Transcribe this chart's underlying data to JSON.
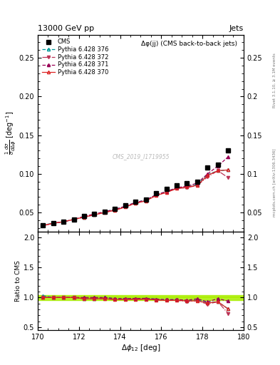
{
  "title_left": "13000 GeV pp",
  "title_right": "Jets",
  "plot_title": "Δφ(jj) (CMS back-to-back jets)",
  "ylabel_main": "$\\frac{1}{\\sigma}\\frac{d\\sigma}{d\\Delta\\phi}$ [deg$^{-1}$]",
  "ylabel_ratio": "Ratio to CMS",
  "xlabel": "$\\Delta\\phi_{12}$ [deg]",
  "right_label": "mcplots.cern.ch [arXiv:1306.3436]",
  "right_label2": "Rivet 3.1.10, ≥ 3.1M events",
  "watermark": "CMS_2019_I1719955",
  "xlim": [
    170,
    180
  ],
  "ylim_main": [
    0.025,
    0.28
  ],
  "ylim_ratio": [
    0.45,
    2.1
  ],
  "yticks_main": [
    0.05,
    0.1,
    0.15,
    0.2,
    0.25
  ],
  "yticks_ratio": [
    0.5,
    1.0,
    1.5,
    2.0
  ],
  "cms_x": [
    170.25,
    170.75,
    171.25,
    171.75,
    172.25,
    172.75,
    173.25,
    173.75,
    174.25,
    174.75,
    175.25,
    175.75,
    176.25,
    176.75,
    177.25,
    177.75,
    178.25,
    178.75,
    179.25
  ],
  "cms_y": [
    0.033,
    0.036,
    0.038,
    0.041,
    0.045,
    0.048,
    0.051,
    0.055,
    0.059,
    0.064,
    0.067,
    0.075,
    0.08,
    0.085,
    0.088,
    0.09,
    0.108,
    0.112,
    0.13
  ],
  "p370_x": [
    170.25,
    170.75,
    171.25,
    171.75,
    172.25,
    172.75,
    173.25,
    173.75,
    174.25,
    174.75,
    175.25,
    175.75,
    176.25,
    176.75,
    177.25,
    177.75,
    178.25,
    178.75,
    179.25
  ],
  "p370_y": [
    0.033,
    0.036,
    0.038,
    0.041,
    0.044,
    0.047,
    0.05,
    0.053,
    0.057,
    0.062,
    0.065,
    0.072,
    0.076,
    0.081,
    0.083,
    0.085,
    0.098,
    0.104,
    0.105
  ],
  "p371_x": [
    170.25,
    170.75,
    171.25,
    171.75,
    172.25,
    172.75,
    173.25,
    173.75,
    174.25,
    174.75,
    175.25,
    175.75,
    176.25,
    176.75,
    177.25,
    177.75,
    178.25,
    178.75,
    179.25
  ],
  "p371_y": [
    0.033,
    0.036,
    0.038,
    0.041,
    0.045,
    0.048,
    0.051,
    0.054,
    0.058,
    0.063,
    0.066,
    0.073,
    0.077,
    0.082,
    0.084,
    0.088,
    0.1,
    0.11,
    0.122
  ],
  "p372_x": [
    170.25,
    170.75,
    171.25,
    171.75,
    172.25,
    172.75,
    173.25,
    173.75,
    174.25,
    174.75,
    175.25,
    175.75,
    176.25,
    176.75,
    177.25,
    177.75,
    178.25,
    178.75,
    179.25
  ],
  "p372_y": [
    0.033,
    0.036,
    0.038,
    0.041,
    0.044,
    0.047,
    0.05,
    0.053,
    0.057,
    0.062,
    0.065,
    0.072,
    0.076,
    0.081,
    0.082,
    0.085,
    0.096,
    0.104,
    0.095
  ],
  "p376_x": [
    170.25,
    170.75,
    171.25,
    171.75,
    172.25,
    172.75,
    173.25,
    173.75,
    174.25,
    174.75,
    175.25,
    175.75,
    176.25,
    176.75,
    177.25,
    177.75,
    178.25,
    178.75,
    179.25
  ],
  "p376_y": [
    0.034,
    0.036,
    0.038,
    0.041,
    0.044,
    0.047,
    0.051,
    0.054,
    0.058,
    0.063,
    0.066,
    0.073,
    0.077,
    0.082,
    0.083,
    0.086,
    0.099,
    0.104,
    0.105
  ],
  "color_370": "#dd2222",
  "color_371": "#990055",
  "color_372": "#bb3355",
  "color_376": "#009999",
  "color_cms": "black",
  "ratio_x": [
    170.25,
    170.75,
    171.25,
    171.75,
    172.25,
    172.75,
    173.25,
    173.75,
    174.25,
    174.75,
    175.25,
    175.75,
    176.25,
    176.75,
    177.25,
    177.75,
    178.25,
    178.75,
    179.25
  ],
  "ratio_370": [
    1.0,
    1.0,
    1.0,
    1.0,
    0.978,
    0.979,
    0.98,
    0.964,
    0.966,
    0.969,
    0.97,
    0.96,
    0.95,
    0.953,
    0.943,
    0.944,
    0.907,
    0.929,
    0.808
  ],
  "ratio_371": [
    1.0,
    1.0,
    1.0,
    1.0,
    1.0,
    1.0,
    1.0,
    0.982,
    0.983,
    0.984,
    0.985,
    0.973,
    0.963,
    0.965,
    0.955,
    0.978,
    0.926,
    0.982,
    0.938
  ],
  "ratio_372": [
    1.0,
    1.0,
    1.0,
    1.0,
    0.978,
    0.979,
    0.98,
    0.964,
    0.966,
    0.969,
    0.97,
    0.96,
    0.95,
    0.953,
    0.932,
    0.944,
    0.889,
    0.929,
    0.731
  ],
  "ratio_376": [
    1.03,
    1.0,
    1.0,
    1.0,
    0.978,
    0.979,
    1.0,
    0.982,
    0.983,
    0.984,
    0.985,
    0.973,
    0.963,
    0.965,
    0.943,
    0.956,
    0.917,
    0.929,
    0.808
  ]
}
